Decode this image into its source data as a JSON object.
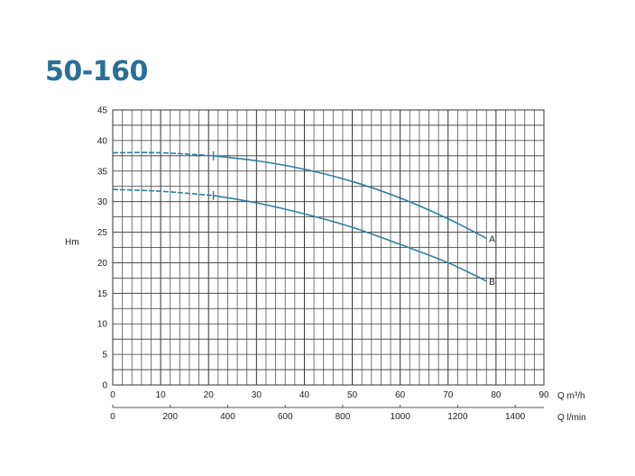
{
  "title": "50-160",
  "chart_data": {
    "type": "line",
    "title": "50-160",
    "ylabel": "Hm",
    "xlabel": "Q m³/h",
    "xlabel_secondary": "Q l/min",
    "xlim": [
      0,
      90
    ],
    "ylim": [
      0,
      45
    ],
    "xticks": [
      0,
      10,
      20,
      30,
      40,
      50,
      60,
      70,
      80,
      90
    ],
    "yticks": [
      0,
      5,
      10,
      15,
      20,
      25,
      30,
      35,
      40,
      45
    ],
    "xticks_secondary": [
      0,
      200,
      400,
      600,
      800,
      1000,
      1200,
      1400
    ],
    "xlim_secondary": [
      0,
      1500
    ],
    "grid": true,
    "color": "#2f7f9e",
    "series": [
      {
        "name": "A",
        "dashed_until": 21,
        "x": [
          0,
          10,
          21,
          30,
          40,
          50,
          60,
          70,
          78
        ],
        "y": [
          38,
          38,
          37.5,
          36.7,
          35.3,
          33.3,
          30.6,
          27.2,
          24
        ]
      },
      {
        "name": "B",
        "dashed_until": 21,
        "x": [
          0,
          10,
          21,
          30,
          40,
          50,
          60,
          70,
          78
        ],
        "y": [
          32,
          31.7,
          31,
          29.8,
          28,
          25.8,
          23,
          20,
          17
        ]
      }
    ]
  }
}
